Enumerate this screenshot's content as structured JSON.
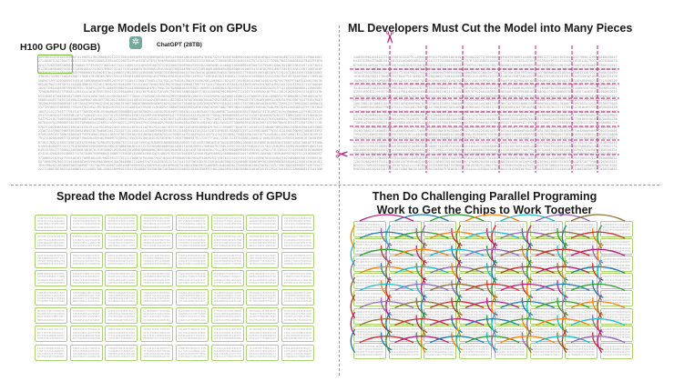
{
  "panels": {
    "top_left": {
      "title": "Large Models Don’t Fit on GPUs",
      "gpu_label": "H100 GPU (80GB)",
      "model_label": "ChatGPT (28TB)",
      "model_icon": "openai-logo-icon"
    },
    "top_right": {
      "title": "ML Developers Must Cut the Model into Many Pieces",
      "cut_icon": "scissors-icon"
    },
    "bottom_left": {
      "title": "Spread the Model Across Hundreds of GPUs"
    },
    "bottom_right": {
      "title_line1": "Then Do Challenging Parallel Programing",
      "title_line2": "Work to Get the Chips to Work Together"
    }
  },
  "grid": {
    "rows": 8,
    "cols": 8
  },
  "colors": {
    "chip_border": "#a8d36e",
    "gpu_box": "#7fbf3f",
    "cut_line": "#c0187a",
    "digit_text": "#9a9a9a",
    "link_colors": [
      "#c0187a",
      "#1f77b4",
      "#2ca02c",
      "#ff7f0e",
      "#17becf",
      "#9467bd",
      "#8c6d31",
      "#d62728"
    ]
  }
}
